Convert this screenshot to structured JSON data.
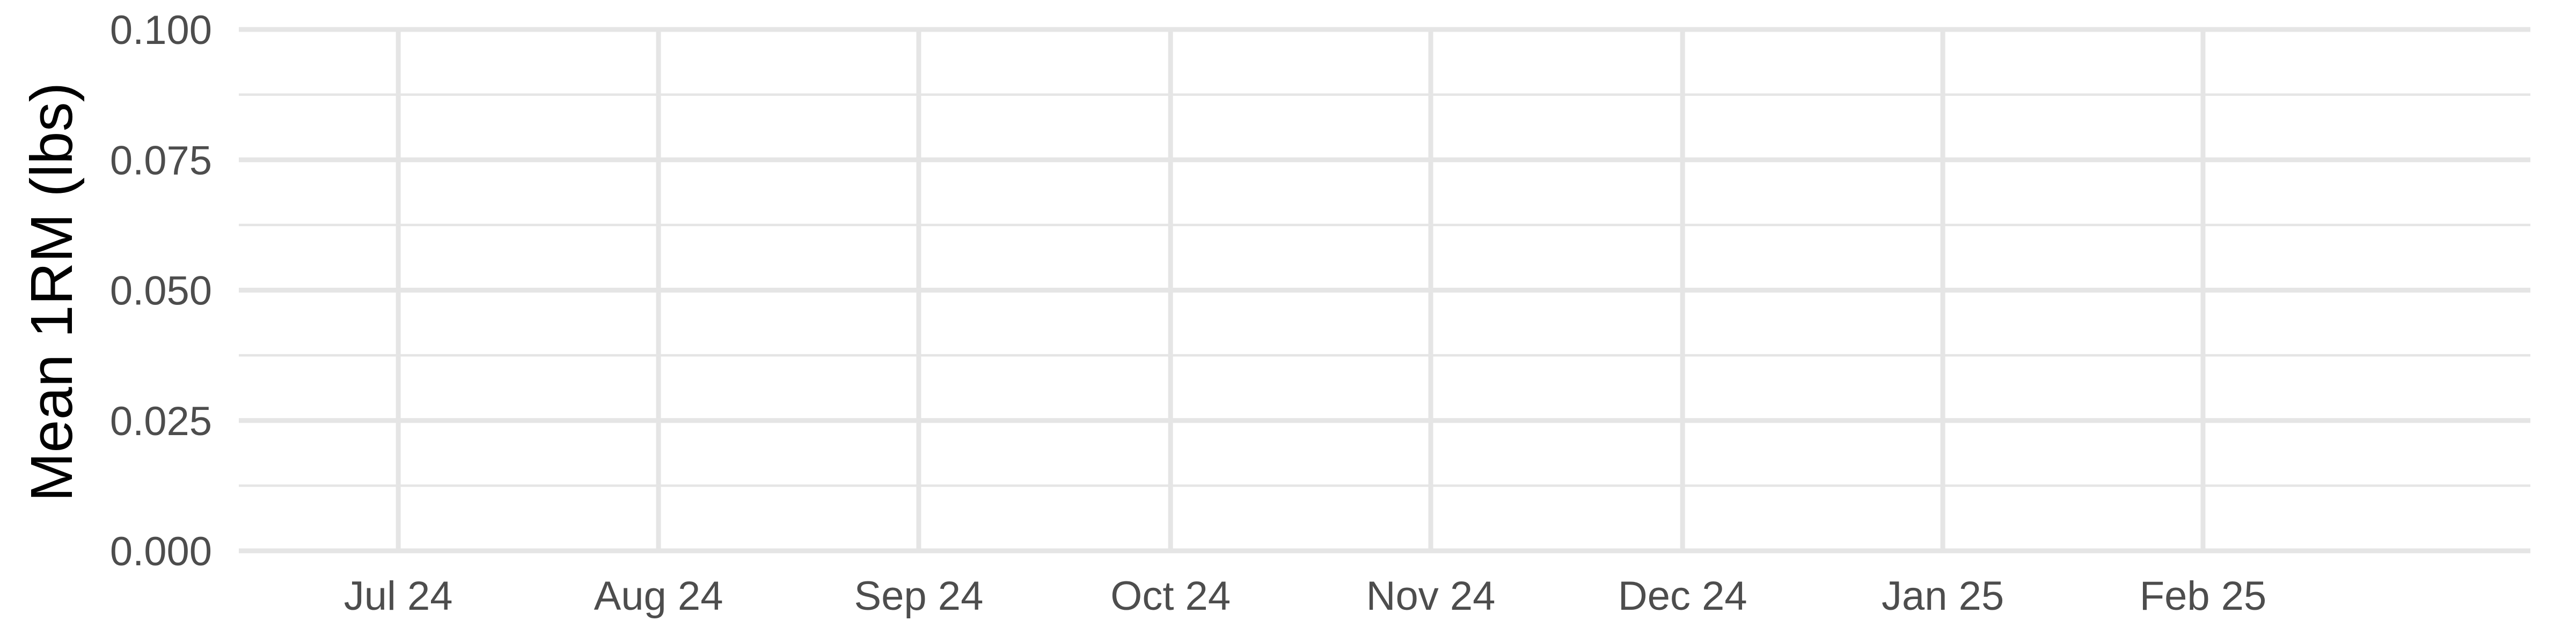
{
  "chart_data": {
    "type": "line",
    "title": "",
    "xlabel": "",
    "ylabel": "Mean 1RM (lbs)",
    "x_axis": {
      "kind": "date",
      "range": [
        "2024-06-12",
        "2025-03-12"
      ],
      "ticks": [
        {
          "value": "2024-07-01",
          "label": "Jul 24"
        },
        {
          "value": "2024-08-01",
          "label": "Aug 24"
        },
        {
          "value": "2024-09-01",
          "label": "Sep 24"
        },
        {
          "value": "2024-10-01",
          "label": "Oct 24"
        },
        {
          "value": "2024-11-01",
          "label": "Nov 24"
        },
        {
          "value": "2024-12-01",
          "label": "Dec 24"
        },
        {
          "value": "2025-01-01",
          "label": "Jan 25"
        },
        {
          "value": "2025-02-01",
          "label": "Feb 25"
        }
      ]
    },
    "y_axis": {
      "range": [
        0,
        0.1
      ],
      "ticks": [
        {
          "value": 0.0,
          "label": "0.000"
        },
        {
          "value": 0.025,
          "label": "0.025"
        },
        {
          "value": 0.05,
          "label": "0.050"
        },
        {
          "value": 0.075,
          "label": "0.075"
        },
        {
          "value": 0.1,
          "label": "0.100"
        }
      ],
      "minor_ticks": [
        0.0125,
        0.0375,
        0.0625,
        0.0875
      ]
    },
    "grid": true,
    "legend": "none",
    "series": [],
    "colors": {
      "grid": "#e5e5e5",
      "tick_label": "#4d4d4d",
      "axis_title": "#000000",
      "background": "#ffffff"
    }
  }
}
